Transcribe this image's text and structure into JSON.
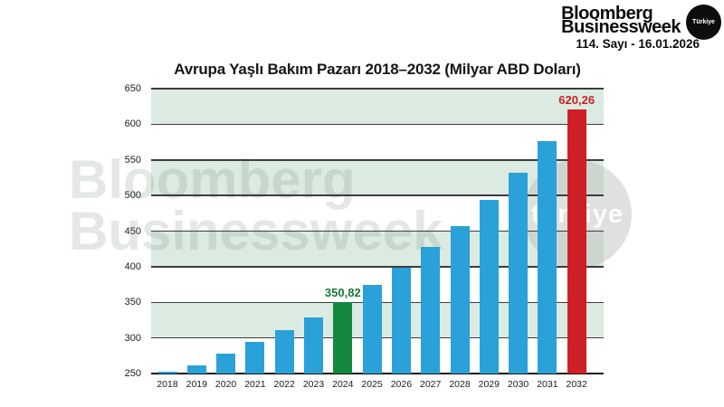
{
  "header": {
    "logo_line1": "Bloomberg",
    "logo_line2": "Businessweek",
    "logo_badge": "Türkiye",
    "issue_line": "114. Sayı - 16.01.2026"
  },
  "watermark": {
    "line1": "Bloomberg",
    "line2": "Businessweek",
    "circle_text": "türkiye"
  },
  "chart_data": {
    "type": "bar",
    "title": "Avrupa Yaşlı Bakım Pazarı 2018–2032 (Milyar ABD Doları)",
    "xlabel": "",
    "ylabel": "Milyar ABD Doları",
    "categories": [
      "2018",
      "2019",
      "2020",
      "2021",
      "2022",
      "2023",
      "2024",
      "2025",
      "2026",
      "2027",
      "2028",
      "2029",
      "2030",
      "2031",
      "2032"
    ],
    "values": [
      252,
      262,
      278,
      295,
      311,
      329,
      350.82,
      374,
      398,
      428,
      457,
      494,
      532,
      577,
      620.26
    ],
    "ylim": [
      250,
      650
    ],
    "yticks": [
      250,
      300,
      350,
      400,
      450,
      500,
      550,
      600,
      650
    ],
    "grid": true,
    "legend": "none",
    "bar_colors": {
      "default": "#2aa1d8",
      "2024": "#15883f",
      "2032": "#ce2026"
    },
    "annotations": [
      {
        "category": "2024",
        "label": "350,82",
        "color": "#187a38"
      },
      {
        "category": "2032",
        "label": "620,26",
        "color": "#ce2026"
      }
    ],
    "style": {
      "band_colors": [
        "#dcebe2",
        "#ffffff"
      ],
      "gridline_color": "#3d3d3d",
      "baseline_color": "#161616"
    }
  }
}
